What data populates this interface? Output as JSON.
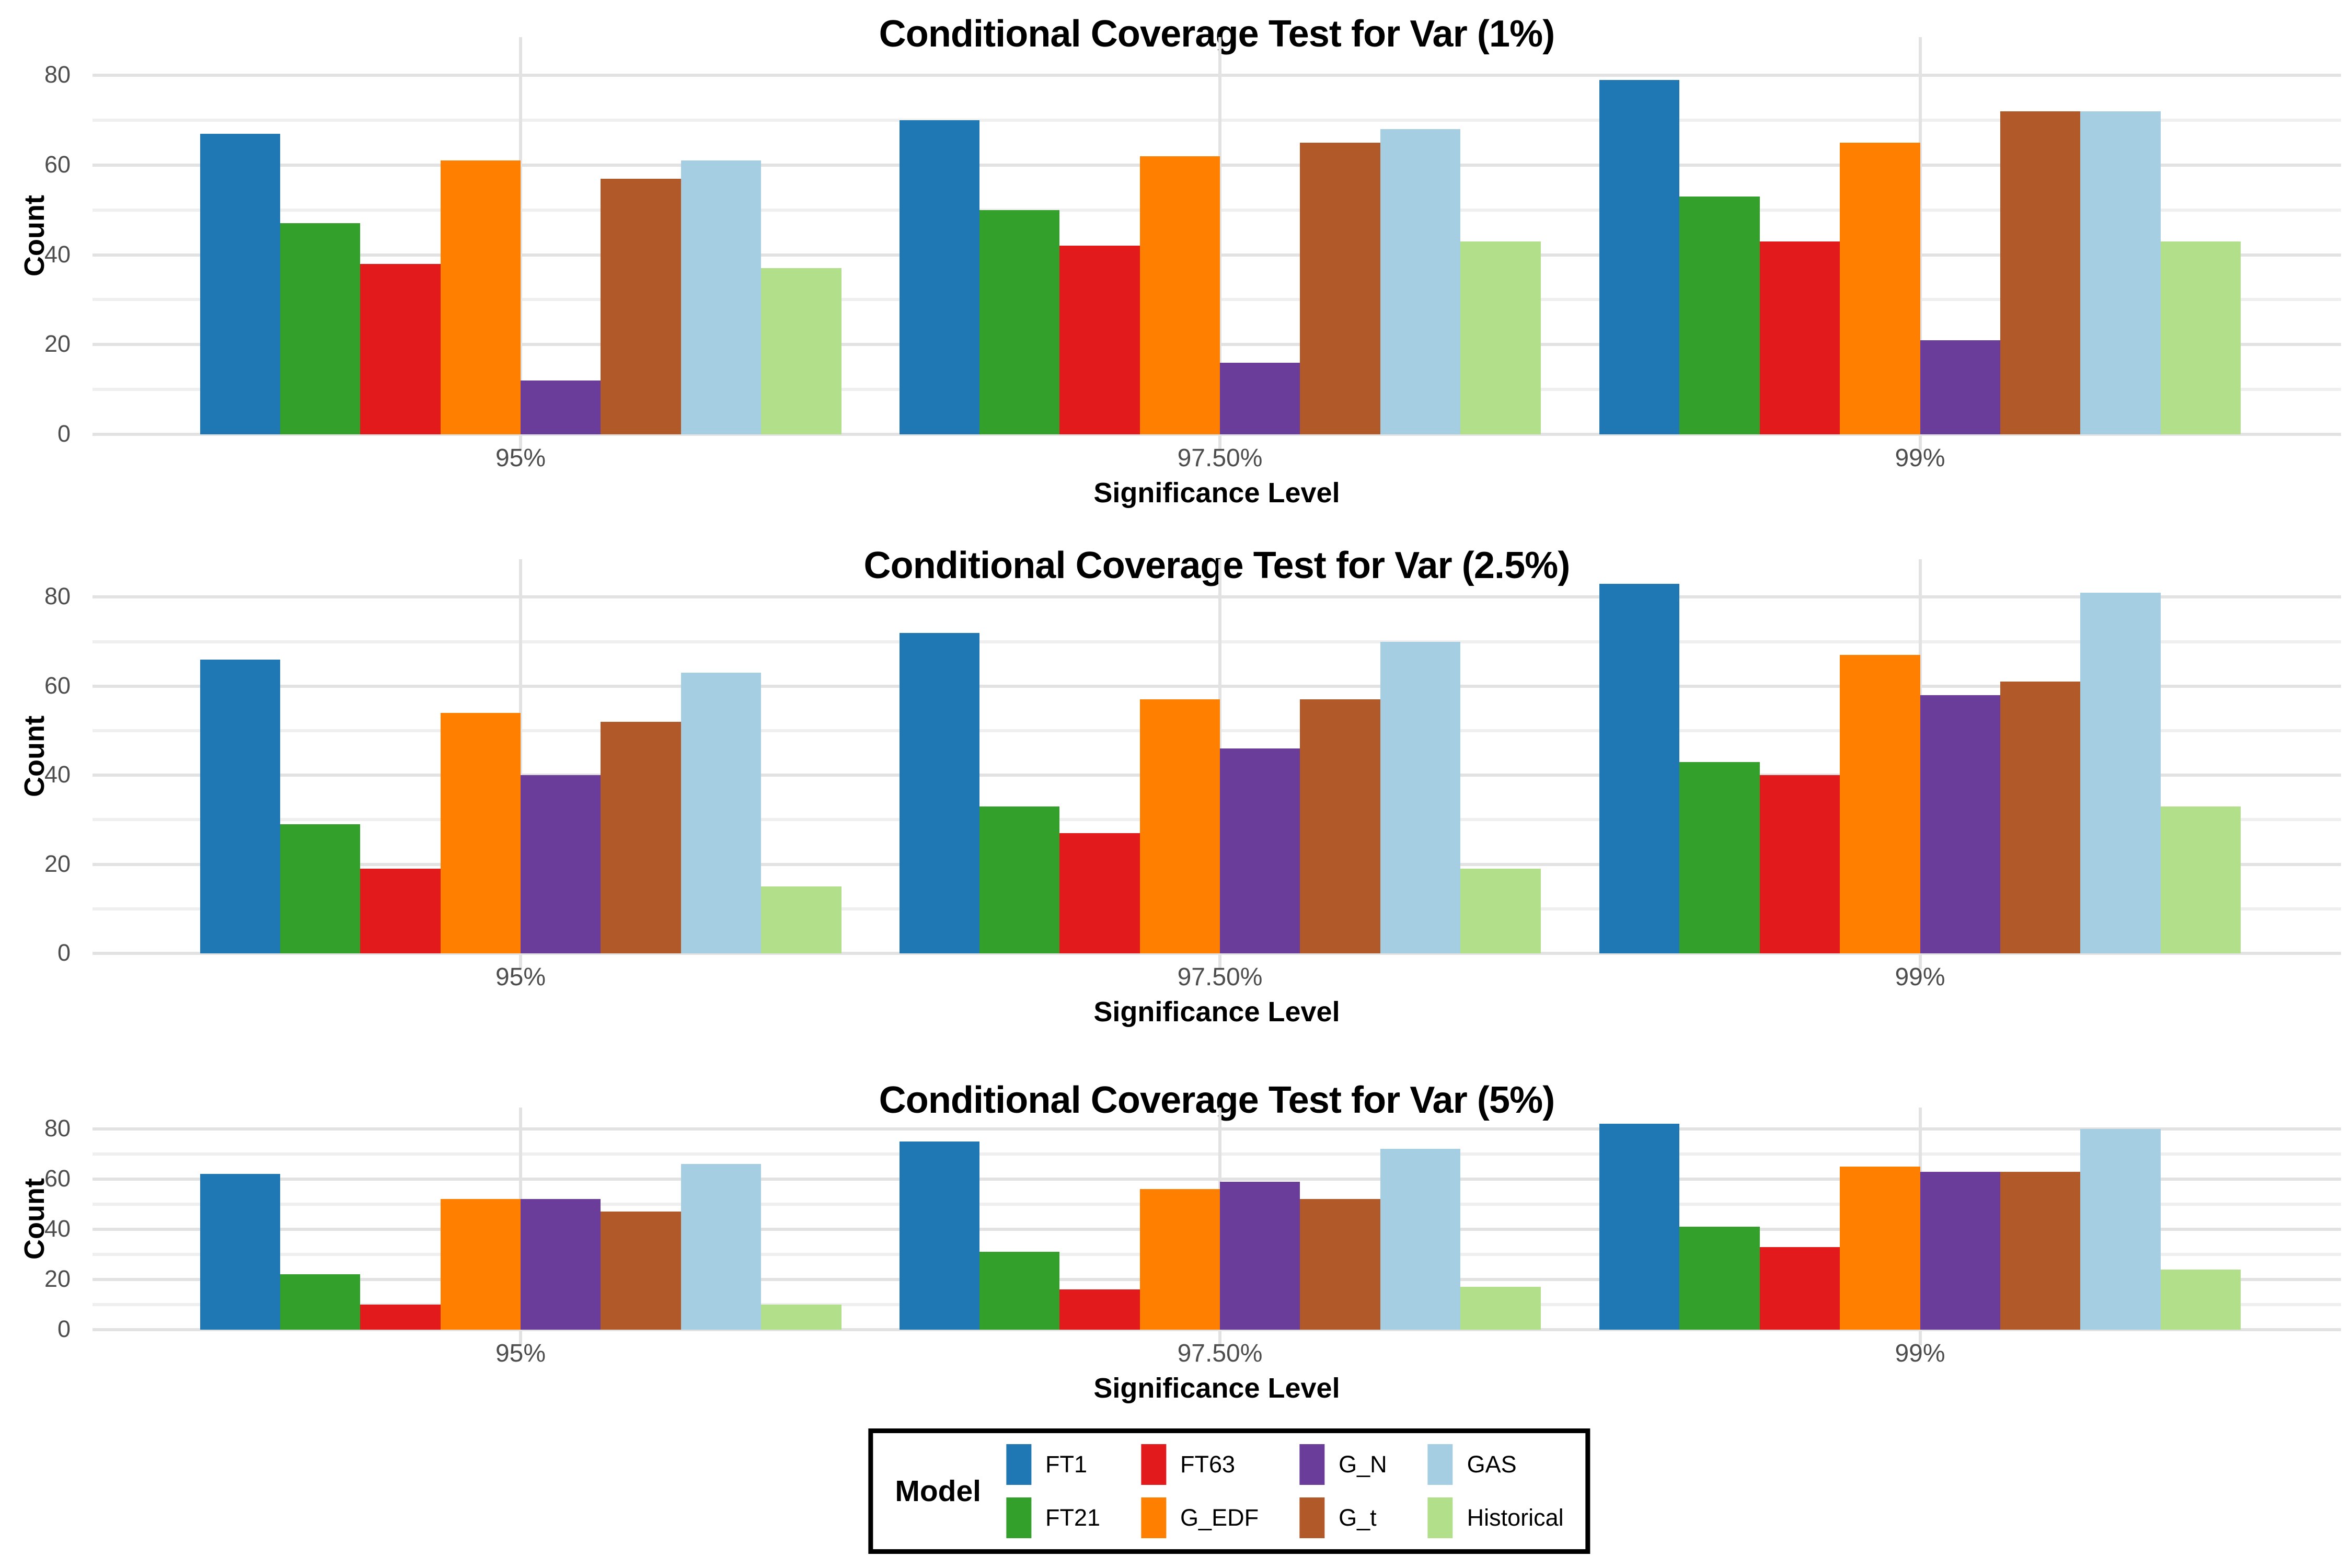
{
  "figure": {
    "background": "#FFFFFF"
  },
  "chart_data": [
    {
      "type": "bar",
      "title": "Conditional Coverage Test for Var (1%)",
      "xlabel": "Significance Level",
      "ylabel": "Count",
      "ylim": [
        0,
        84
      ],
      "yticks": [
        0,
        20,
        40,
        60,
        80
      ],
      "grid": "major and minor horizontal, vertical at category centers",
      "legend_position": "bottom",
      "categories": [
        "95%",
        "97.50%",
        "99%"
      ],
      "series": [
        {
          "name": "FT1",
          "color": "#1F78B4",
          "values": [
            67,
            70,
            79
          ]
        },
        {
          "name": "FT21",
          "color": "#33A02C",
          "values": [
            47,
            50,
            53
          ]
        },
        {
          "name": "FT63",
          "color": "#E31A1C",
          "values": [
            38,
            42,
            43
          ]
        },
        {
          "name": "G_EDF",
          "color": "#FF7F00",
          "values": [
            61,
            62,
            65
          ]
        },
        {
          "name": "G_N",
          "color": "#6A3D9A",
          "values": [
            12,
            16,
            21
          ]
        },
        {
          "name": "G_t",
          "color": "#B15928",
          "values": [
            57,
            65,
            72
          ]
        },
        {
          "name": "GAS",
          "color": "#A6CEE3",
          "values": [
            61,
            68,
            72
          ]
        },
        {
          "name": "Historical",
          "color": "#B2DF8A",
          "values": [
            37,
            43,
            43
          ]
        }
      ]
    },
    {
      "type": "bar",
      "title": "Conditional Coverage Test for Var (2.5%)",
      "xlabel": "Significance Level",
      "ylabel": "Count",
      "ylim": [
        0,
        84
      ],
      "yticks": [
        0,
        20,
        40,
        60,
        80
      ],
      "grid": "major and minor horizontal, vertical at category centers",
      "legend_position": "bottom",
      "categories": [
        "95%",
        "97.50%",
        "99%"
      ],
      "series": [
        {
          "name": "FT1",
          "color": "#1F78B4",
          "values": [
            66,
            72,
            83
          ]
        },
        {
          "name": "FT21",
          "color": "#33A02C",
          "values": [
            29,
            33,
            43
          ]
        },
        {
          "name": "FT63",
          "color": "#E31A1C",
          "values": [
            19,
            27,
            40
          ]
        },
        {
          "name": "G_EDF",
          "color": "#FF7F00",
          "values": [
            54,
            57,
            67
          ]
        },
        {
          "name": "G_N",
          "color": "#6A3D9A",
          "values": [
            40,
            46,
            58
          ]
        },
        {
          "name": "G_t",
          "color": "#B15928",
          "values": [
            52,
            57,
            61
          ]
        },
        {
          "name": "GAS",
          "color": "#A6CEE3",
          "values": [
            63,
            70,
            81
          ]
        },
        {
          "name": "Historical",
          "color": "#B2DF8A",
          "values": [
            15,
            19,
            33
          ]
        }
      ]
    },
    {
      "type": "bar",
      "title": "Conditional Coverage Test for Var (5%)",
      "xlabel": "Significance Level",
      "ylabel": "Count",
      "ylim": [
        0,
        84
      ],
      "yticks": [
        0,
        20,
        40,
        60,
        80
      ],
      "grid": "major and minor horizontal, vertical at category centers",
      "legend_position": "bottom",
      "categories": [
        "95%",
        "97.50%",
        "99%"
      ],
      "series": [
        {
          "name": "FT1",
          "color": "#1F78B4",
          "values": [
            62,
            75,
            82
          ]
        },
        {
          "name": "FT21",
          "color": "#33A02C",
          "values": [
            22,
            31,
            41
          ]
        },
        {
          "name": "FT63",
          "color": "#E31A1C",
          "values": [
            10,
            16,
            33
          ]
        },
        {
          "name": "G_EDF",
          "color": "#FF7F00",
          "values": [
            52,
            56,
            65
          ]
        },
        {
          "name": "G_N",
          "color": "#6A3D9A",
          "values": [
            52,
            59,
            63
          ]
        },
        {
          "name": "G_t",
          "color": "#B15928",
          "values": [
            47,
            52,
            63
          ]
        },
        {
          "name": "GAS",
          "color": "#A6CEE3",
          "values": [
            66,
            72,
            80
          ]
        },
        {
          "name": "Historical",
          "color": "#B2DF8A",
          "values": [
            10,
            17,
            24
          ]
        }
      ]
    }
  ],
  "legend": {
    "title": "Model",
    "rows": 2,
    "order": "column-major",
    "entries": [
      {
        "label": "FT1",
        "color": "#1F78B4"
      },
      {
        "label": "FT21",
        "color": "#33A02C"
      },
      {
        "label": "FT63",
        "color": "#E31A1C"
      },
      {
        "label": "G_EDF",
        "color": "#FF7F00"
      },
      {
        "label": "G_N",
        "color": "#6A3D9A"
      },
      {
        "label": "G_t",
        "color": "#B15928"
      },
      {
        "label": "GAS",
        "color": "#A6CEE3"
      },
      {
        "label": "Historical",
        "color": "#B2DF8A"
      }
    ]
  }
}
